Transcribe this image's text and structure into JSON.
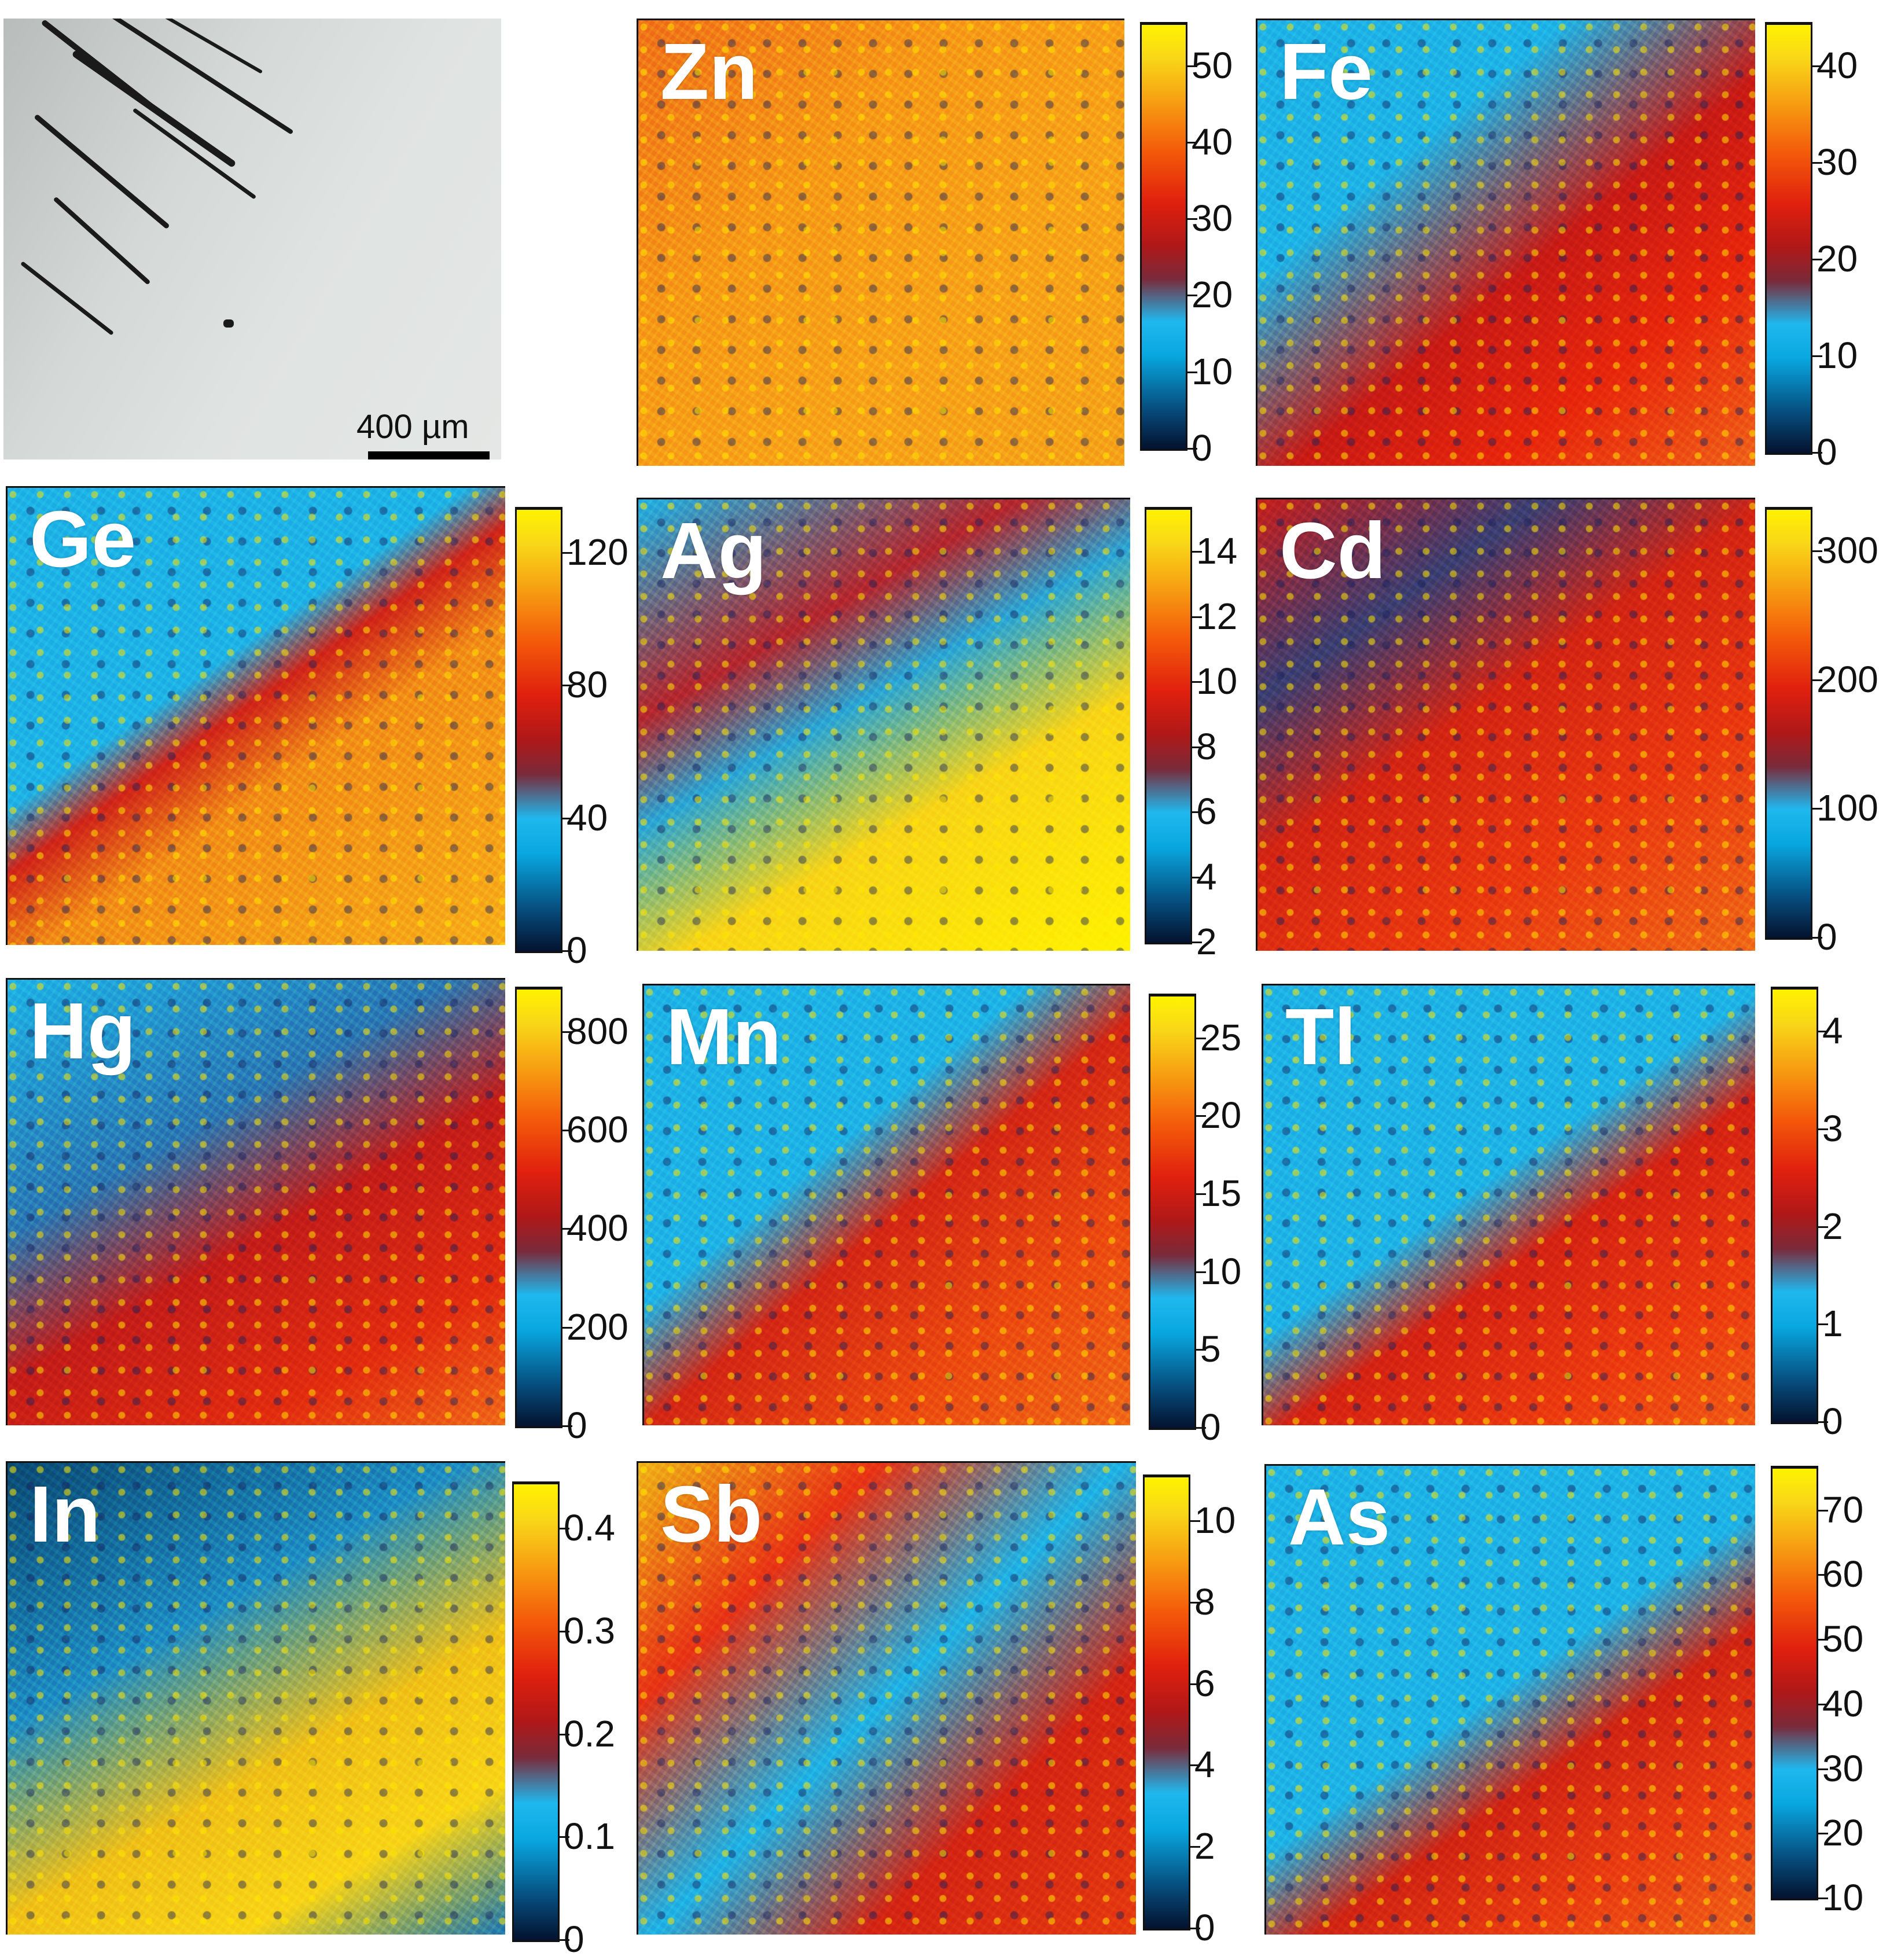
{
  "photo": {
    "scale_bar_label": "400 µm"
  },
  "maps": [
    {
      "id": "zn",
      "label": "Zn",
      "ticks": [
        "0",
        "10",
        "20",
        "30",
        "40",
        "50"
      ]
    },
    {
      "id": "fe",
      "label": "Fe",
      "ticks": [
        "0",
        "10",
        "20",
        "30",
        "40"
      ]
    },
    {
      "id": "ge",
      "label": "Ge",
      "ticks": [
        "0",
        "40",
        "80",
        "120"
      ]
    },
    {
      "id": "ag",
      "label": "Ag",
      "ticks": [
        "2",
        "4",
        "6",
        "8",
        "10",
        "12",
        "14"
      ]
    },
    {
      "id": "cd",
      "label": "Cd",
      "ticks": [
        "0",
        "100",
        "200",
        "300"
      ]
    },
    {
      "id": "hg",
      "label": "Hg",
      "ticks": [
        "0",
        "200",
        "400",
        "600",
        "800"
      ]
    },
    {
      "id": "mn",
      "label": "Mn",
      "ticks": [
        "0",
        "5",
        "10",
        "15",
        "20",
        "25"
      ]
    },
    {
      "id": "tl",
      "label": "Tl",
      "ticks": [
        "0",
        "1",
        "2",
        "3",
        "4"
      ]
    },
    {
      "id": "in",
      "label": "In",
      "ticks": [
        "0",
        "0.1",
        "0.2",
        "0.3",
        "0.4"
      ]
    },
    {
      "id": "sb",
      "label": "Sb",
      "ticks": [
        "0",
        "2",
        "4",
        "6",
        "8",
        "10"
      ]
    },
    {
      "id": "as",
      "label": "As",
      "ticks": [
        "10",
        "20",
        "30",
        "40",
        "50",
        "60",
        "70"
      ]
    }
  ],
  "colors": {
    "low": "#04122e",
    "cyan": "#1fb8ee",
    "red": "#e0200e",
    "orange": "#f59a14",
    "yellow": "#fff300"
  }
}
